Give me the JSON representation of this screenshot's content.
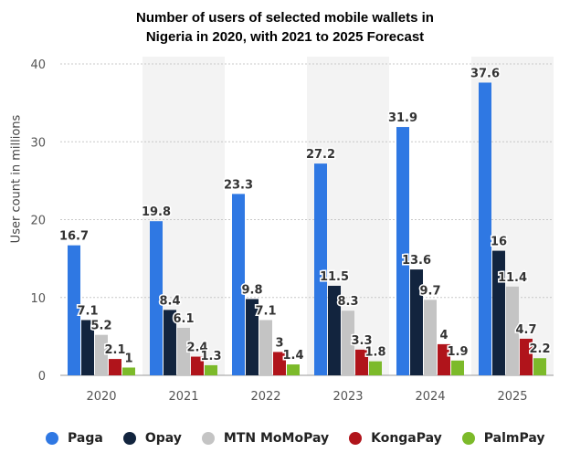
{
  "chart_data": {
    "type": "bar",
    "title_line1": "Number of users of selected mobile wallets in",
    "title_line2": "Nigeria in 2020, with 2021 to 2025 Forecast",
    "ylabel": "User count in millions",
    "xlabel": "",
    "ylim": [
      0,
      40
    ],
    "yticks": [
      0,
      10,
      20,
      30,
      40
    ],
    "grid": true,
    "legend_position": "bottom",
    "categories": [
      "2020",
      "2021",
      "2022",
      "2023",
      "2024",
      "2025"
    ],
    "series": [
      {
        "name": "Paga",
        "color": "#2f78e3",
        "values": [
          16.7,
          19.8,
          23.3,
          27.2,
          31.9,
          37.6
        ]
      },
      {
        "name": "Opay",
        "color": "#12243e",
        "values": [
          7.1,
          8.4,
          9.8,
          11.5,
          13.6,
          16
        ]
      },
      {
        "name": "MTN MoMoPay",
        "color": "#c4c4c4",
        "values": [
          5.2,
          6.1,
          7.1,
          8.3,
          9.7,
          11.4
        ]
      },
      {
        "name": "KongaPay",
        "color": "#b0141b",
        "values": [
          2.1,
          2.4,
          3,
          3.3,
          4,
          4.7
        ]
      },
      {
        "name": "PalmPay",
        "color": "#7cba2a",
        "values": [
          1,
          1.3,
          1.4,
          1.8,
          1.9,
          2.2
        ]
      }
    ]
  }
}
